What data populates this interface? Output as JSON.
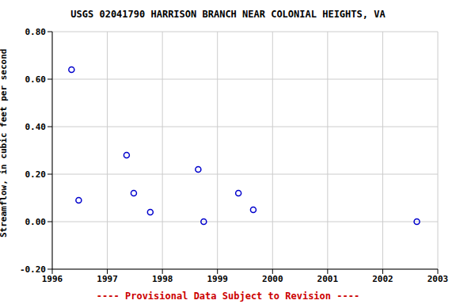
{
  "chart_data": {
    "type": "scatter",
    "title": "USGS 02041790 HARRISON BRANCH NEAR COLONIAL HEIGHTS, VA",
    "subtitle": "---- Provisional Data Subject to Revision ----",
    "y_label": "Streamflow, in cubic feet per second",
    "x": [
      1996.35,
      1996.48,
      1997.35,
      1997.48,
      1997.78,
      1998.65,
      1998.75,
      1999.38,
      1999.65,
      2002.62
    ],
    "values": [
      0.64,
      0.09,
      0.28,
      0.12,
      0.04,
      0.22,
      0.0,
      0.12,
      0.05,
      0.0
    ],
    "color": "#0000cc",
    "marker": "open_circle",
    "xlim": [
      1996,
      2003
    ],
    "xticks": [
      1996,
      1997,
      1998,
      1999,
      2000,
      2001,
      2002,
      2003
    ],
    "ylim": [
      -0.2,
      0.8
    ],
    "yticks": [
      {
        "value": -0.2,
        "label": "-0.20"
      },
      {
        "value": 0,
        "label": "0.00"
      },
      {
        "value": 0.2,
        "label": "0.20"
      },
      {
        "value": 0.4,
        "label": "0.40"
      },
      {
        "value": 0.6,
        "label": "0.60"
      },
      {
        "value": 0.8,
        "label": "0.80"
      }
    ],
    "grid": true
  }
}
